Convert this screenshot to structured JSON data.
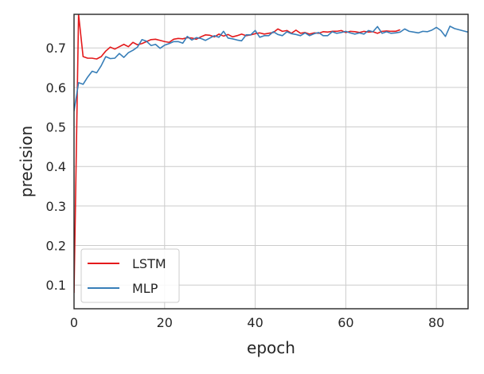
{
  "chart_data": {
    "type": "line",
    "title": "",
    "xlabel": "epoch",
    "ylabel": "precision",
    "xlim": [
      0,
      87
    ],
    "ylim": [
      0.04,
      0.785
    ],
    "xticks": [
      "0",
      "20",
      "40",
      "60",
      "80"
    ],
    "yticks": [
      "0.1",
      "0.2",
      "0.3",
      "0.4",
      "0.5",
      "0.6",
      "0.7"
    ],
    "grid": true,
    "legend_position": "lower-left",
    "series": [
      {
        "name": "LSTM",
        "color": "#e41a1c",
        "x": [
          0,
          1,
          2,
          3,
          4,
          5,
          6,
          7,
          8,
          9,
          10,
          11,
          12,
          13,
          14,
          15,
          16,
          17,
          18,
          19,
          20,
          21,
          22,
          23,
          24,
          25,
          26,
          27,
          28,
          29,
          30,
          31,
          32,
          33,
          34,
          35,
          36,
          37,
          38,
          39,
          40,
          41,
          42,
          43,
          44,
          45,
          46,
          47,
          48,
          49,
          50,
          51,
          52,
          53,
          54,
          55,
          56,
          57,
          58,
          59,
          60,
          61,
          62,
          63,
          64,
          65,
          66,
          67,
          68,
          69,
          70,
          71,
          72
        ],
        "values": [
          0.08,
          0.785,
          0.678,
          0.674,
          0.674,
          0.672,
          0.678,
          0.692,
          0.702,
          0.697,
          0.703,
          0.709,
          0.703,
          0.714,
          0.708,
          0.711,
          0.716,
          0.721,
          0.722,
          0.719,
          0.716,
          0.714,
          0.722,
          0.724,
          0.723,
          0.726,
          0.725,
          0.722,
          0.728,
          0.733,
          0.732,
          0.728,
          0.735,
          0.73,
          0.734,
          0.728,
          0.731,
          0.735,
          0.731,
          0.733,
          0.736,
          0.738,
          0.735,
          0.737,
          0.739,
          0.748,
          0.742,
          0.744,
          0.737,
          0.745,
          0.737,
          0.739,
          0.735,
          0.738,
          0.737,
          0.741,
          0.74,
          0.742,
          0.742,
          0.744,
          0.739,
          0.742,
          0.741,
          0.739,
          0.742,
          0.74,
          0.741,
          0.737,
          0.742,
          0.743,
          0.742,
          0.742,
          0.746
        ]
      },
      {
        "name": "MLP",
        "color": "#377eb8",
        "x": [
          0,
          1,
          2,
          3,
          4,
          5,
          6,
          7,
          8,
          9,
          10,
          11,
          12,
          13,
          14,
          15,
          16,
          17,
          18,
          19,
          20,
          21,
          22,
          23,
          24,
          25,
          26,
          27,
          28,
          29,
          30,
          31,
          32,
          33,
          34,
          35,
          36,
          37,
          38,
          39,
          40,
          41,
          42,
          43,
          44,
          45,
          46,
          47,
          48,
          49,
          50,
          51,
          52,
          53,
          54,
          55,
          56,
          57,
          58,
          59,
          60,
          61,
          62,
          63,
          64,
          65,
          66,
          67,
          68,
          69,
          70,
          71,
          72,
          73,
          74,
          75,
          76,
          77,
          78,
          79,
          80,
          81,
          82,
          83,
          84,
          85,
          86,
          87
        ],
        "values": [
          0.54,
          0.612,
          0.608,
          0.626,
          0.641,
          0.637,
          0.655,
          0.678,
          0.673,
          0.674,
          0.686,
          0.676,
          0.688,
          0.694,
          0.702,
          0.721,
          0.717,
          0.706,
          0.709,
          0.699,
          0.707,
          0.711,
          0.716,
          0.716,
          0.712,
          0.729,
          0.72,
          0.726,
          0.724,
          0.719,
          0.725,
          0.731,
          0.727,
          0.742,
          0.725,
          0.723,
          0.72,
          0.718,
          0.733,
          0.733,
          0.744,
          0.727,
          0.731,
          0.731,
          0.741,
          0.734,
          0.731,
          0.741,
          0.736,
          0.734,
          0.731,
          0.738,
          0.731,
          0.736,
          0.739,
          0.731,
          0.731,
          0.741,
          0.737,
          0.739,
          0.742,
          0.738,
          0.735,
          0.738,
          0.735,
          0.744,
          0.741,
          0.754,
          0.737,
          0.741,
          0.737,
          0.738,
          0.74,
          0.748,
          0.742,
          0.74,
          0.738,
          0.742,
          0.741,
          0.745,
          0.752,
          0.744,
          0.729,
          0.755,
          0.749,
          0.746,
          0.743,
          0.74
        ]
      }
    ]
  }
}
